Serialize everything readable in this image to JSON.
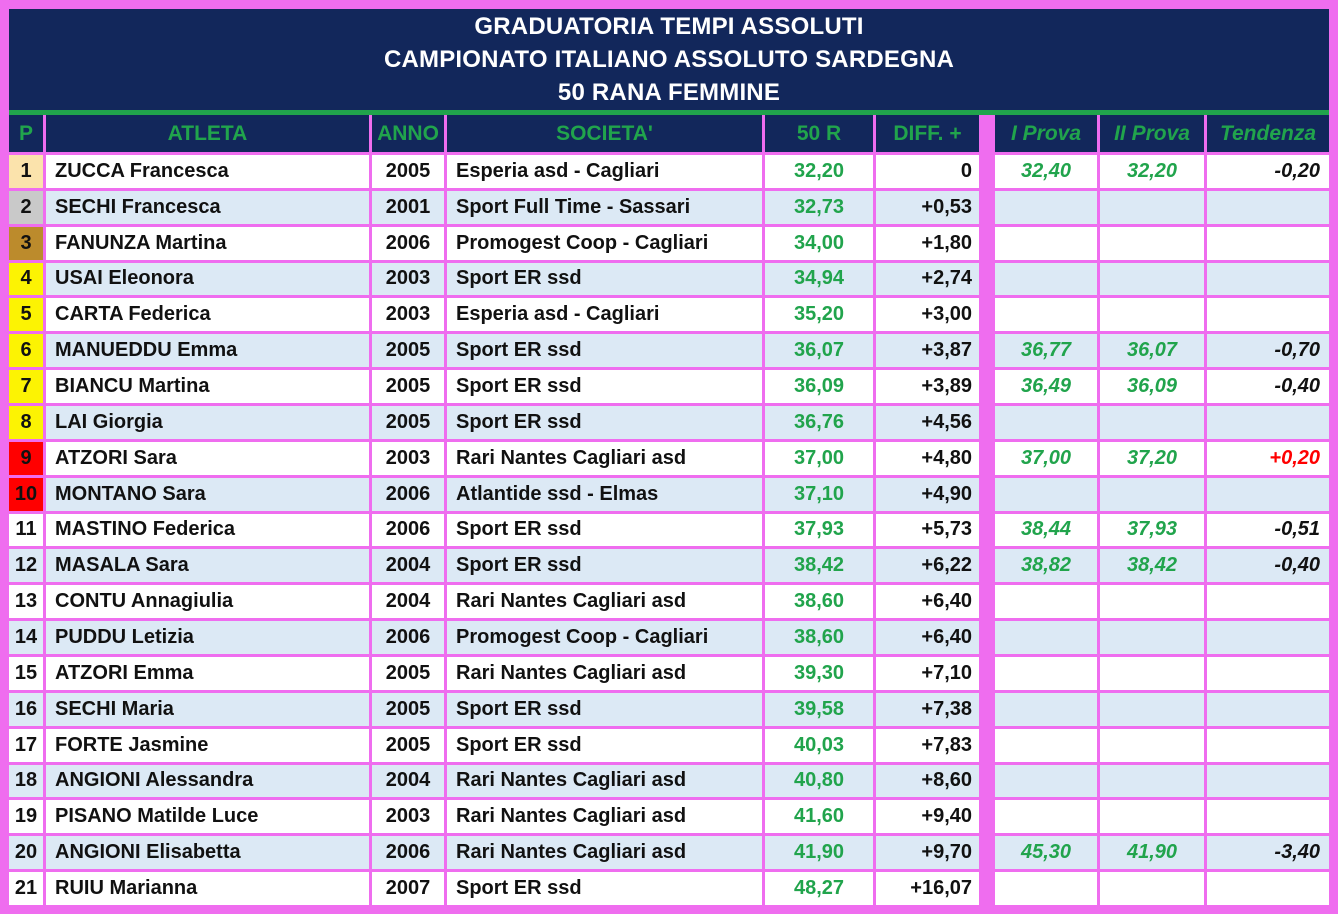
{
  "title": {
    "line1": "GRADUATORIA TEMPI ASSOLUTI",
    "line2": "CAMPIONATO ITALIANO ASSOLUTO SARDEGNA",
    "line3": "50 RANA FEMMINE"
  },
  "columns": {
    "p": "P",
    "atleta": "ATLETA",
    "anno": "ANNO",
    "societa": "SOCIETA'",
    "time": "50 R",
    "diff": "DIFF. +",
    "prova1": "I Prova",
    "prova2": "II Prova",
    "tendenza": "Tendenza"
  },
  "colors": {
    "frame": "#EF6DEF",
    "navy": "#12275B",
    "green": "#21A44C",
    "light_blue": "#DCE9F5",
    "row_white": "#FFFFFF",
    "gold": "#FBE3AC",
    "silver": "#C9C9C9",
    "bronze": "#BC8B2C",
    "yellow": "#FCF303",
    "red": "#FF0000",
    "ink": "#111111"
  },
  "rows": [
    {
      "p": "1",
      "atleta": "ZUCCA Francesca",
      "anno": "2005",
      "societa": "Esperia asd - Cagliari",
      "time": "32,20",
      "diff": "0",
      "prova1": "32,40",
      "prova2": "32,20",
      "tendenza": "-0,20",
      "p_color": "gold",
      "tendenza_red": false
    },
    {
      "p": "2",
      "atleta": "SECHI Francesca",
      "anno": "2001",
      "societa": "Sport Full Time - Sassari",
      "time": "32,73",
      "diff": "+0,53",
      "prova1": "",
      "prova2": "",
      "tendenza": "",
      "p_color": "silver",
      "tendenza_red": false
    },
    {
      "p": "3",
      "atleta": "FANUNZA Martina",
      "anno": "2006",
      "societa": "Promogest Coop - Cagliari",
      "time": "34,00",
      "diff": "+1,80",
      "prova1": "",
      "prova2": "",
      "tendenza": "",
      "p_color": "bronze",
      "tendenza_red": false
    },
    {
      "p": "4",
      "atleta": "USAI Eleonora",
      "anno": "2003",
      "societa": "Sport ER ssd",
      "time": "34,94",
      "diff": "+2,74",
      "prova1": "",
      "prova2": "",
      "tendenza": "",
      "p_color": "yellow",
      "tendenza_red": false
    },
    {
      "p": "5",
      "atleta": "CARTA Federica",
      "anno": "2003",
      "societa": "Esperia asd - Cagliari",
      "time": "35,20",
      "diff": "+3,00",
      "prova1": "",
      "prova2": "",
      "tendenza": "",
      "p_color": "yellow",
      "tendenza_red": false
    },
    {
      "p": "6",
      "atleta": "MANUEDDU Emma",
      "anno": "2005",
      "societa": "Sport ER ssd",
      "time": "36,07",
      "diff": "+3,87",
      "prova1": "36,77",
      "prova2": "36,07",
      "tendenza": "-0,70",
      "p_color": "yellow",
      "tendenza_red": false
    },
    {
      "p": "7",
      "atleta": "BIANCU Martina",
      "anno": "2005",
      "societa": "Sport ER ssd",
      "time": "36,09",
      "diff": "+3,89",
      "prova1": "36,49",
      "prova2": "36,09",
      "tendenza": "-0,40",
      "p_color": "yellow",
      "tendenza_red": false
    },
    {
      "p": "8",
      "atleta": "LAI Giorgia",
      "anno": "2005",
      "societa": "Sport ER ssd",
      "time": "36,76",
      "diff": "+4,56",
      "prova1": "",
      "prova2": "",
      "tendenza": "",
      "p_color": "yellow",
      "tendenza_red": false
    },
    {
      "p": "9",
      "atleta": "ATZORI Sara",
      "anno": "2003",
      "societa": "Rari Nantes Cagliari asd",
      "time": "37,00",
      "diff": "+4,80",
      "prova1": "37,00",
      "prova2": "37,20",
      "tendenza": "+0,20",
      "p_color": "red",
      "tendenza_red": true
    },
    {
      "p": "10",
      "atleta": "MONTANO Sara",
      "anno": "2006",
      "societa": "Atlantide ssd - Elmas",
      "time": "37,10",
      "diff": "+4,90",
      "prova1": "",
      "prova2": "",
      "tendenza": "",
      "p_color": "red",
      "tendenza_red": false
    },
    {
      "p": "11",
      "atleta": "MASTINO Federica",
      "anno": "2006",
      "societa": "Sport ER ssd",
      "time": "37,93",
      "diff": "+5,73",
      "prova1": "38,44",
      "prova2": "37,93",
      "tendenza": "-0,51",
      "p_color": "",
      "tendenza_red": false
    },
    {
      "p": "12",
      "atleta": "MASALA Sara",
      "anno": "2004",
      "societa": "Sport ER ssd",
      "time": "38,42",
      "diff": "+6,22",
      "prova1": "38,82",
      "prova2": "38,42",
      "tendenza": "-0,40",
      "p_color": "",
      "tendenza_red": false
    },
    {
      "p": "13",
      "atleta": "CONTU Annagiulia",
      "anno": "2004",
      "societa": "Rari Nantes Cagliari asd",
      "time": "38,60",
      "diff": "+6,40",
      "prova1": "",
      "prova2": "",
      "tendenza": "",
      "p_color": "",
      "tendenza_red": false
    },
    {
      "p": "14",
      "atleta": "PUDDU Letizia",
      "anno": "2006",
      "societa": "Promogest Coop - Cagliari",
      "time": "38,60",
      "diff": "+6,40",
      "prova1": "",
      "prova2": "",
      "tendenza": "",
      "p_color": "",
      "tendenza_red": false
    },
    {
      "p": "15",
      "atleta": "ATZORI Emma",
      "anno": "2005",
      "societa": "Rari Nantes Cagliari asd",
      "time": "39,30",
      "diff": "+7,10",
      "prova1": "",
      "prova2": "",
      "tendenza": "",
      "p_color": "",
      "tendenza_red": false
    },
    {
      "p": "16",
      "atleta": "SECHI Maria",
      "anno": "2005",
      "societa": "Sport ER ssd",
      "time": "39,58",
      "diff": "+7,38",
      "prova1": "",
      "prova2": "",
      "tendenza": "",
      "p_color": "",
      "tendenza_red": false
    },
    {
      "p": "17",
      "atleta": "FORTE Jasmine",
      "anno": "2005",
      "societa": "Sport ER ssd",
      "time": "40,03",
      "diff": "+7,83",
      "prova1": "",
      "prova2": "",
      "tendenza": "",
      "p_color": "",
      "tendenza_red": false
    },
    {
      "p": "18",
      "atleta": "ANGIONI Alessandra",
      "anno": "2004",
      "societa": "Rari Nantes Cagliari asd",
      "time": "40,80",
      "diff": "+8,60",
      "prova1": "",
      "prova2": "",
      "tendenza": "",
      "p_color": "",
      "tendenza_red": false
    },
    {
      "p": "19",
      "atleta": "PISANO Matilde Luce",
      "anno": "2003",
      "societa": "Rari Nantes Cagliari asd",
      "time": "41,60",
      "diff": "+9,40",
      "prova1": "",
      "prova2": "",
      "tendenza": "",
      "p_color": "",
      "tendenza_red": false
    },
    {
      "p": "20",
      "atleta": "ANGIONI Elisabetta",
      "anno": "2006",
      "societa": "Rari Nantes Cagliari asd",
      "time": "41,90",
      "diff": "+9,70",
      "prova1": "45,30",
      "prova2": "41,90",
      "tendenza": "-3,40",
      "p_color": "",
      "tendenza_red": false
    },
    {
      "p": "21",
      "atleta": "RUIU Marianna",
      "anno": "2007",
      "societa": "Sport ER ssd",
      "time": "48,27",
      "diff": "+16,07",
      "prova1": "",
      "prova2": "",
      "tendenza": "",
      "p_color": "",
      "tendenza_red": false
    }
  ]
}
